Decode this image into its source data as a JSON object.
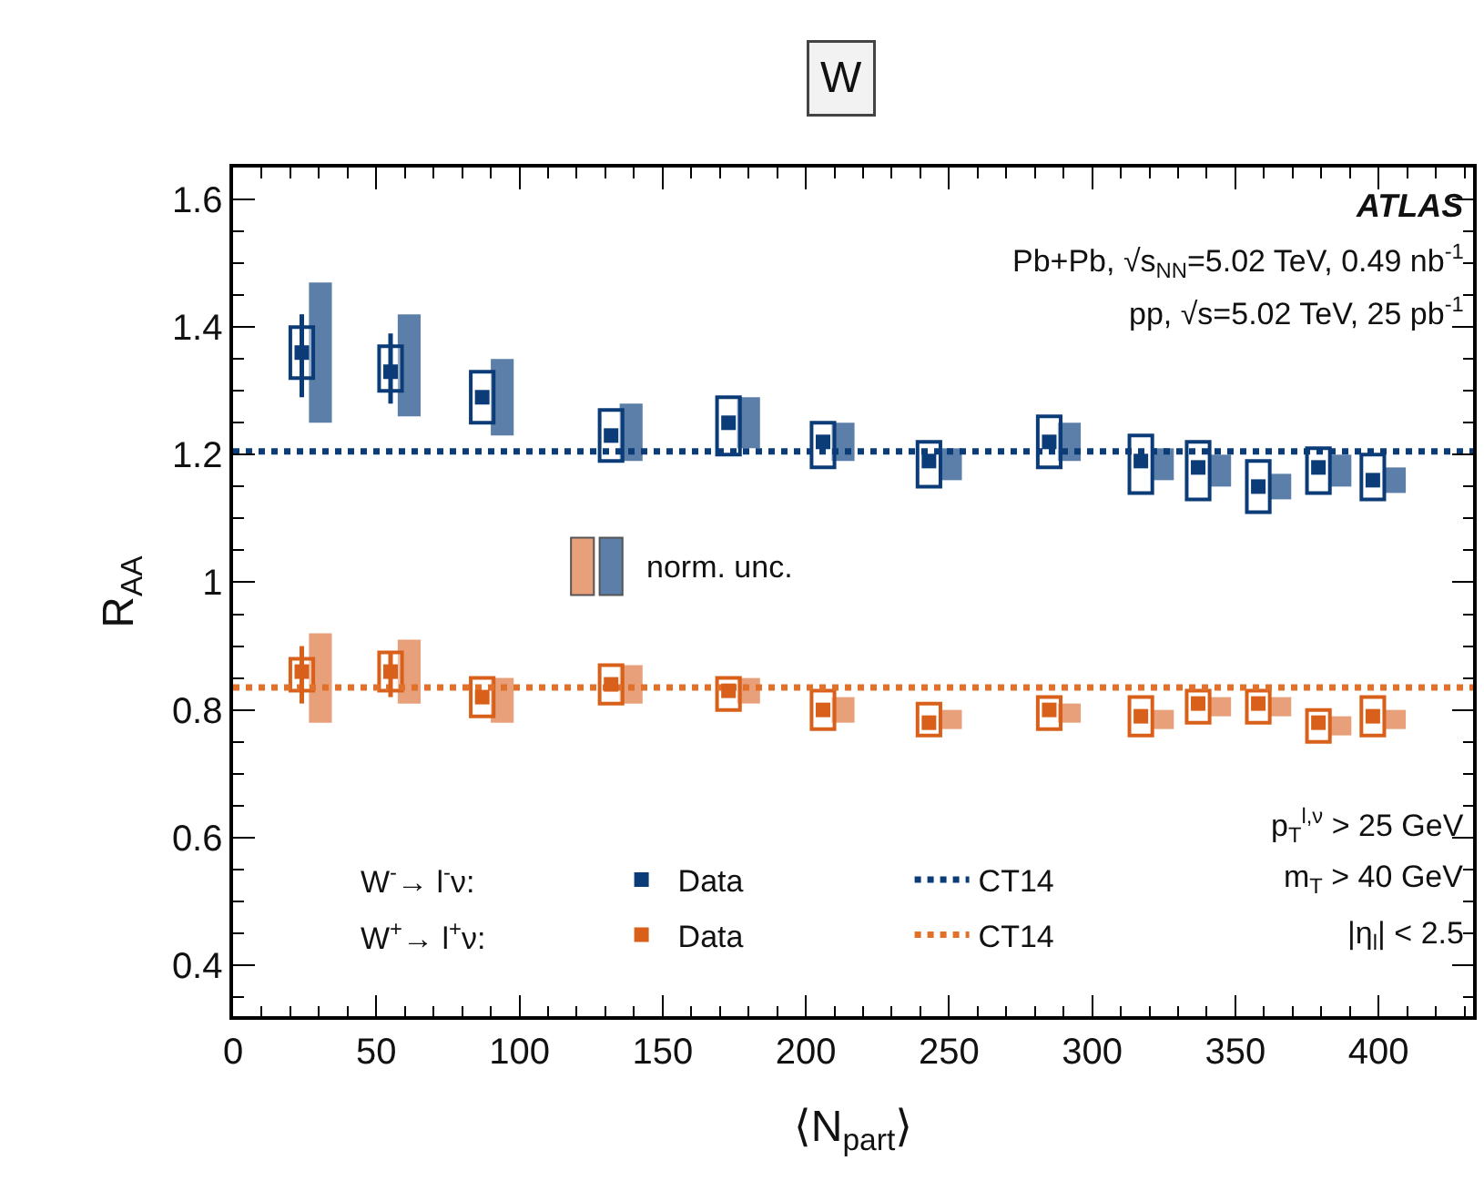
{
  "chart_data": {
    "type": "scatter",
    "title": "W",
    "xlabel": "⟨N$_{part}$⟩",
    "ylabel": "R$_{AA}$",
    "xlim": [
      0,
      433
    ],
    "xticks": [
      0,
      50,
      100,
      150,
      200,
      250,
      300,
      350,
      400
    ],
    "ylim": [
      0.32,
      1.65
    ],
    "yticks": [
      0.4,
      0.6,
      0.8,
      {
        "value": 1,
        "label": "1"
      },
      1.2,
      1.4,
      1.6
    ],
    "grid": false,
    "legend": "bottom left",
    "annotations": [
      "ATLAS",
      "Pb+Pb, √s$_{NN}$=5.02 TeV, 0.49 nb$^{-1}$",
      "pp, √s=5.02 TeV, 25 pb$^{-1}$",
      "norm. unc.",
      "p$_{T}$$^{l,ν}$ > 25 GeV",
      "m$_{T}$ > 40 GeV",
      "|η$_{l}$| < 2.5",
      "W$^{-}$→ l$^{-}$ν:",
      "W$^{+}$→ l$^{+}$ν:"
    ],
    "series": [
      {
        "type": "bar",
        "color": "#5b7fa8",
        "x": [
          30.5,
          61.5,
          94,
          139,
          180,
          213,
          250.5,
          292,
          324.5,
          344.5,
          365.5,
          386.5,
          405.5
        ],
        "base": [
          1.25,
          1.26,
          1.23,
          1.19,
          1.21,
          1.19,
          1.16,
          1.19,
          1.16,
          1.15,
          1.13,
          1.15,
          1.14
        ],
        "values": [
          0.22,
          0.16,
          0.12,
          0.09,
          0.08,
          0.06,
          0.05,
          0.06,
          0.05,
          0.05,
          0.04,
          0.05,
          0.04
        ]
      },
      {
        "type": "bar",
        "color": "#e8a07a",
        "x": [
          30.5,
          61.5,
          94,
          139,
          180,
          213,
          250.5,
          292,
          324.5,
          344.5,
          365.5,
          386.5,
          405.5
        ],
        "base": [
          0.78,
          0.81,
          0.78,
          0.81,
          0.81,
          0.78,
          0.77,
          0.78,
          0.77,
          0.79,
          0.79,
          0.76,
          0.77
        ],
        "values": [
          0.14,
          0.1,
          0.07,
          0.06,
          0.04,
          0.04,
          0.03,
          0.03,
          0.03,
          0.03,
          0.03,
          0.03,
          0.03
        ]
      },
      {
        "type": "bar",
        "colors": [
          "#e8a07a",
          "#5b7fa8"
        ],
        "x": [
          122,
          132
        ],
        "base": [
          0.98,
          0.98
        ],
        "values": [
          0.09,
          0.09
        ]
      },
      {
        "type": "line",
        "name": "CT14",
        "color": "#0b3c78",
        "line_style": "dotted",
        "x": [
          0,
          433
        ],
        "values": [
          1.205,
          1.205
        ]
      },
      {
        "type": "line",
        "name": "CT14",
        "color": "#e0702a",
        "line_style": "dotted",
        "x": [
          0,
          433
        ],
        "values": [
          0.835,
          0.835
        ]
      },
      {
        "type": "bar",
        "color": "#0b3c78",
        "line_style": "solid",
        "x": [
          24,
          55,
          87,
          132,
          173,
          206,
          243,
          285,
          317,
          337,
          358,
          379,
          398
        ],
        "base": [
          1.32,
          1.3,
          1.25,
          1.19,
          1.2,
          1.18,
          1.15,
          1.18,
          1.14,
          1.13,
          1.11,
          1.14,
          1.13
        ],
        "values": [
          0.08,
          0.07,
          0.08,
          0.08,
          0.09,
          0.07,
          0.07,
          0.08,
          0.09,
          0.09,
          0.08,
          0.07,
          0.07
        ]
      },
      {
        "type": "bar",
        "color": "#d9601a",
        "line_style": "solid",
        "x": [
          24,
          55,
          87,
          132,
          173,
          206,
          243,
          285,
          317,
          337,
          358,
          379,
          398
        ],
        "base": [
          0.83,
          0.83,
          0.79,
          0.81,
          0.8,
          0.77,
          0.76,
          0.77,
          0.76,
          0.78,
          0.78,
          0.75,
          0.76
        ],
        "values": [
          0.05,
          0.06,
          0.06,
          0.06,
          0.05,
          0.06,
          0.05,
          0.05,
          0.06,
          0.05,
          0.05,
          0.05,
          0.06
        ]
      },
      {
        "name": "Data",
        "marker": "square",
        "color": "#0b3c78",
        "x": [
          24,
          55,
          87,
          132,
          173,
          206,
          243,
          285,
          317,
          337,
          358,
          379,
          398
        ],
        "values": [
          1.36,
          1.33,
          1.29,
          1.23,
          1.25,
          1.22,
          1.19,
          1.22,
          1.19,
          1.18,
          1.15,
          1.18,
          1.16
        ],
        "errors": [
          [
            1.29,
            1.42
          ],
          [
            1.28,
            1.39
          ],
          null,
          null,
          null,
          null,
          null,
          null,
          null,
          null,
          null,
          null,
          null
        ]
      },
      {
        "name": "Data",
        "marker": "square",
        "color": "#d9601a",
        "x": [
          24,
          55,
          87,
          132,
          173,
          206,
          243,
          285,
          317,
          337,
          358,
          379,
          398
        ],
        "values": [
          0.86,
          0.86,
          0.82,
          0.84,
          0.83,
          0.8,
          0.78,
          0.8,
          0.79,
          0.81,
          0.81,
          0.78,
          0.79
        ],
        "errors": [
          [
            0.81,
            0.9
          ],
          [
            0.82,
            0.89
          ],
          null,
          null,
          null,
          null,
          null,
          null,
          null,
          null,
          null,
          null,
          null
        ]
      }
    ]
  }
}
